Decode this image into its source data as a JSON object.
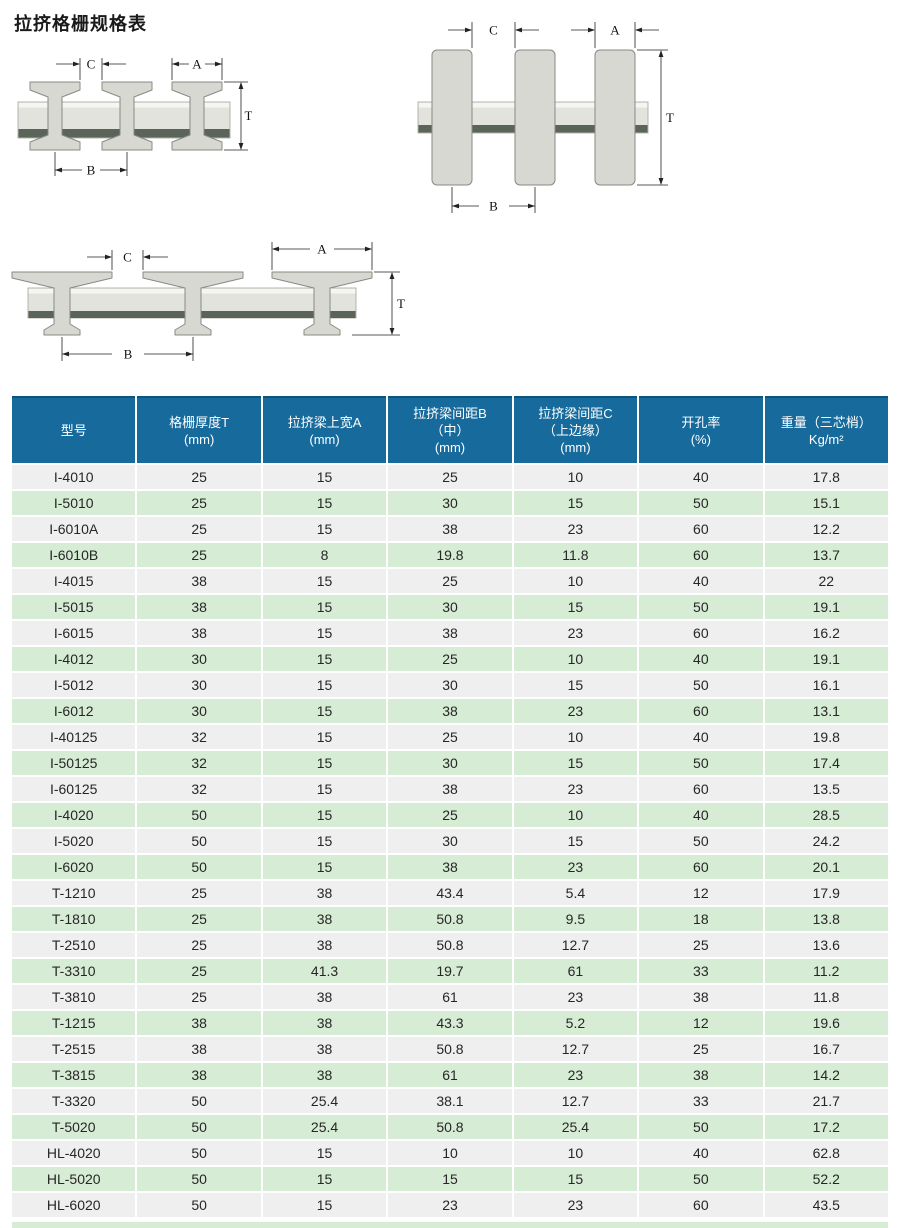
{
  "title": "拉挤格栅规格表",
  "diagrams": {
    "labels": {
      "c": "C",
      "a": "A",
      "t": "T",
      "b": "B"
    }
  },
  "table": {
    "columns": [
      {
        "lines": [
          "型号"
        ]
      },
      {
        "lines": [
          "格栅厚度T",
          "(mm)"
        ]
      },
      {
        "lines": [
          "拉挤梁上宽A",
          "(mm)"
        ]
      },
      {
        "lines": [
          "拉挤梁间距B",
          "（中）",
          "(mm)"
        ]
      },
      {
        "lines": [
          "拉挤梁间距C",
          "（上边缘）",
          "(mm)"
        ]
      },
      {
        "lines": [
          "开孔率",
          "(%)"
        ]
      },
      {
        "lines": [
          "重量（三芯梢）",
          "Kg/m²"
        ]
      }
    ],
    "rows": [
      [
        "I-4010",
        "25",
        "15",
        "25",
        "10",
        "40",
        "17.8"
      ],
      [
        "I-5010",
        "25",
        "15",
        "30",
        "15",
        "50",
        "15.1"
      ],
      [
        "I-6010A",
        "25",
        "15",
        "38",
        "23",
        "60",
        "12.2"
      ],
      [
        "I-6010B",
        "25",
        "8",
        "19.8",
        "11.8",
        "60",
        "13.7"
      ],
      [
        "I-4015",
        "38",
        "15",
        "25",
        "10",
        "40",
        "22"
      ],
      [
        "I-5015",
        "38",
        "15",
        "30",
        "15",
        "50",
        "19.1"
      ],
      [
        "I-6015",
        "38",
        "15",
        "38",
        "23",
        "60",
        "16.2"
      ],
      [
        "I-4012",
        "30",
        "15",
        "25",
        "10",
        "40",
        "19.1"
      ],
      [
        "I-5012",
        "30",
        "15",
        "30",
        "15",
        "50",
        "16.1"
      ],
      [
        "I-6012",
        "30",
        "15",
        "38",
        "23",
        "60",
        "13.1"
      ],
      [
        "I-40125",
        "32",
        "15",
        "25",
        "10",
        "40",
        "19.8"
      ],
      [
        "I-50125",
        "32",
        "15",
        "30",
        "15",
        "50",
        "17.4"
      ],
      [
        "I-60125",
        "32",
        "15",
        "38",
        "23",
        "60",
        "13.5"
      ],
      [
        "I-4020",
        "50",
        "15",
        "25",
        "10",
        "40",
        "28.5"
      ],
      [
        "I-5020",
        "50",
        "15",
        "30",
        "15",
        "50",
        "24.2"
      ],
      [
        "I-6020",
        "50",
        "15",
        "38",
        "23",
        "60",
        "20.1"
      ],
      [
        "T-1210",
        "25",
        "38",
        "43.4",
        "5.4",
        "12",
        "17.9"
      ],
      [
        "T-1810",
        "25",
        "38",
        "50.8",
        "9.5",
        "18",
        "13.8"
      ],
      [
        "T-2510",
        "25",
        "38",
        "50.8",
        "12.7",
        "25",
        "13.6"
      ],
      [
        "T-3310",
        "25",
        "41.3",
        "19.7",
        "61",
        "33",
        "11.2"
      ],
      [
        "T-3810",
        "25",
        "38",
        "61",
        "23",
        "38",
        "11.8"
      ],
      [
        "T-1215",
        "38",
        "38",
        "43.3",
        "5.2",
        "12",
        "19.6"
      ],
      [
        "T-2515",
        "38",
        "38",
        "50.8",
        "12.7",
        "25",
        "16.7"
      ],
      [
        "T-3815",
        "38",
        "38",
        "61",
        "23",
        "38",
        "14.2"
      ],
      [
        "T-3320",
        "50",
        "25.4",
        "38.1",
        "12.7",
        "33",
        "21.7"
      ],
      [
        "T-5020",
        "50",
        "25.4",
        "50.8",
        "25.4",
        "50",
        "17.2"
      ],
      [
        "HL-4020",
        "50",
        "15",
        "10",
        "10",
        "40",
        "62.8"
      ],
      [
        "HL-5020",
        "50",
        "15",
        "15",
        "15",
        "50",
        "52.2"
      ],
      [
        "HL-6020",
        "50",
        "15",
        "23",
        "23",
        "60",
        "43.5"
      ]
    ],
    "colors": {
      "header_bg": "#176a9c",
      "header_top_edge": "#0f537f",
      "row_gray": "#efefef",
      "row_green": "#d7ecd5",
      "profile_fill": "#d8d8d3",
      "plate_dark_stripe": "#5a6459"
    }
  }
}
